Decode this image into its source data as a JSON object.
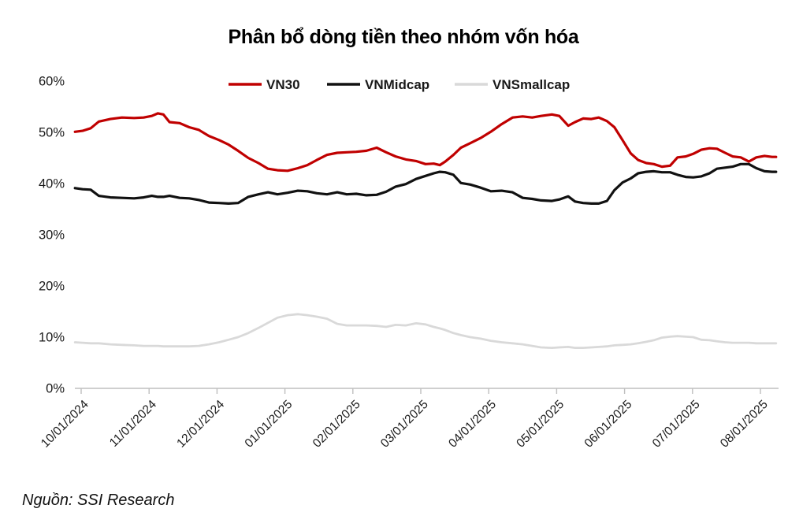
{
  "page": {
    "source_note": "Nguồn: SSI Research"
  },
  "style": {
    "background": "#FFFFFF",
    "axis_color": "#BFBFBF",
    "label_color": "#1A1A1A",
    "title_color": "#000000"
  },
  "chart_data": {
    "type": "line",
    "title": "Phân bổ dòng tiền theo nhóm vốn hóa",
    "legend_position": "top-center",
    "grid": false,
    "ylabel": "",
    "xlabel": "",
    "ylim": [
      0,
      60
    ],
    "xlim_months": [
      -0.15,
      10.3
    ],
    "y_tick_labels": [
      "0%",
      "10%",
      "20%",
      "30%",
      "40%",
      "50%",
      "60%"
    ],
    "x_tick_labels": [
      "10/01/2024",
      "11/01/2024",
      "12/01/2024",
      "01/01/2025",
      "02/01/2025",
      "03/01/2025",
      "04/01/2025",
      "05/01/2025",
      "06/01/2025",
      "07/01/2025",
      "08/01/2025"
    ],
    "x_months": [
      -0.09,
      0.02,
      0.14,
      0.26,
      0.43,
      0.6,
      0.78,
      0.92,
      1.04,
      1.13,
      1.21,
      1.3,
      1.45,
      1.59,
      1.73,
      1.88,
      2.03,
      2.17,
      2.31,
      2.46,
      2.61,
      2.75,
      2.89,
      3.04,
      3.19,
      3.33,
      3.47,
      3.62,
      3.77,
      3.91,
      4.05,
      4.2,
      4.35,
      4.49,
      4.63,
      4.78,
      4.93,
      5.07,
      5.19,
      5.28,
      5.36,
      5.48,
      5.59,
      5.73,
      5.88,
      6.03,
      6.19,
      6.35,
      6.5,
      6.64,
      6.77,
      6.93,
      7.04,
      7.17,
      7.27,
      7.39,
      7.51,
      7.62,
      7.74,
      7.85,
      7.97,
      8.09,
      8.2,
      8.32,
      8.43,
      8.55,
      8.67,
      8.78,
      8.9,
      9.01,
      9.13,
      9.25,
      9.36,
      9.48,
      9.59,
      9.71,
      9.83,
      9.94,
      10.06,
      10.17,
      10.23
    ],
    "series": [
      {
        "name": "VN30",
        "color": "#C00000",
        "line_width": 3.2,
        "values": [
          50.1,
          50.3,
          50.8,
          52.1,
          52.6,
          52.9,
          52.8,
          52.9,
          53.2,
          53.7,
          53.5,
          52.0,
          51.8,
          51.0,
          50.5,
          49.3,
          48.5,
          47.6,
          46.4,
          45.0,
          44.0,
          42.9,
          42.6,
          42.5,
          43.0,
          43.6,
          44.6,
          45.6,
          46.0,
          46.1,
          46.2,
          46.4,
          47.0,
          46.1,
          45.3,
          44.7,
          44.4,
          43.8,
          43.9,
          43.6,
          44.3,
          45.6,
          47.0,
          47.9,
          48.9,
          50.1,
          51.6,
          52.9,
          53.1,
          52.9,
          53.2,
          53.5,
          53.2,
          51.3,
          52.0,
          52.7,
          52.6,
          52.9,
          52.2,
          51.0,
          48.5,
          45.9,
          44.6,
          44.0,
          43.8,
          43.3,
          43.5,
          45.1,
          45.3,
          45.8,
          46.6,
          46.9,
          46.8,
          46.0,
          45.3,
          45.1,
          44.3,
          45.1,
          45.4,
          45.2,
          45.2
        ]
      },
      {
        "name": "VNMidcap",
        "color": "#111111",
        "line_width": 3.2,
        "values": [
          39.1,
          38.9,
          38.8,
          37.6,
          37.3,
          37.2,
          37.1,
          37.3,
          37.6,
          37.4,
          37.4,
          37.6,
          37.2,
          37.1,
          36.8,
          36.3,
          36.2,
          36.1,
          36.2,
          37.4,
          37.9,
          38.3,
          37.9,
          38.2,
          38.6,
          38.5,
          38.1,
          37.9,
          38.3,
          37.9,
          38.0,
          37.7,
          37.8,
          38.4,
          39.4,
          39.9,
          40.9,
          41.5,
          42.0,
          42.3,
          42.2,
          41.7,
          40.1,
          39.8,
          39.2,
          38.5,
          38.6,
          38.3,
          37.2,
          37.0,
          36.7,
          36.6,
          36.9,
          37.5,
          36.5,
          36.2,
          36.1,
          36.1,
          36.6,
          38.7,
          40.2,
          41.0,
          42.0,
          42.3,
          42.4,
          42.2,
          42.2,
          41.7,
          41.3,
          41.2,
          41.4,
          42.0,
          42.9,
          43.1,
          43.3,
          43.8,
          43.8,
          43.0,
          42.4,
          42.3,
          42.3
        ]
      },
      {
        "name": "VNSmallcap",
        "color": "#D9D9D9",
        "line_width": 2.8,
        "values": [
          9.0,
          8.9,
          8.8,
          8.8,
          8.6,
          8.5,
          8.4,
          8.3,
          8.3,
          8.3,
          8.2,
          8.2,
          8.2,
          8.2,
          8.3,
          8.6,
          9.0,
          9.5,
          10.0,
          10.8,
          11.8,
          12.8,
          13.8,
          14.3,
          14.5,
          14.3,
          14.0,
          13.6,
          12.6,
          12.3,
          12.3,
          12.3,
          12.2,
          12.0,
          12.4,
          12.3,
          12.7,
          12.5,
          12.0,
          11.7,
          11.4,
          10.8,
          10.4,
          10.0,
          9.7,
          9.3,
          9.0,
          8.8,
          8.6,
          8.3,
          8.0,
          7.9,
          8.0,
          8.1,
          7.9,
          7.9,
          8.0,
          8.1,
          8.2,
          8.4,
          8.5,
          8.6,
          8.8,
          9.1,
          9.4,
          9.9,
          10.1,
          10.2,
          10.1,
          10.0,
          9.5,
          9.4,
          9.2,
          9.0,
          8.9,
          8.9,
          8.9,
          8.8,
          8.8,
          8.8,
          8.8
        ]
      }
    ]
  }
}
